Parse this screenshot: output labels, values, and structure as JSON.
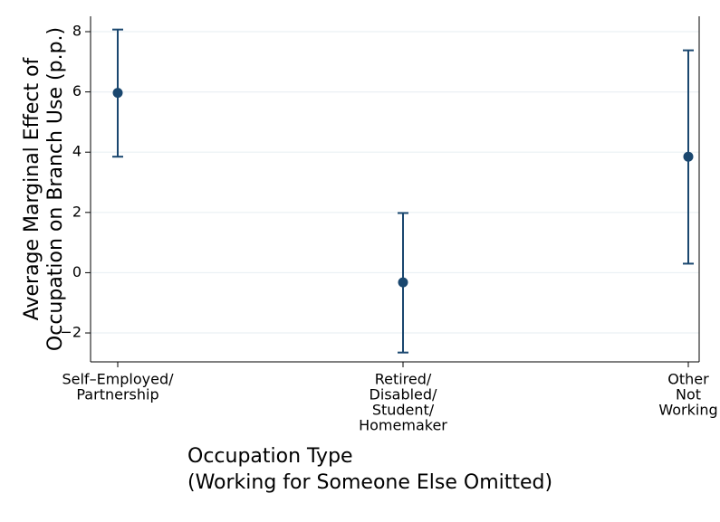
{
  "chart_data": {
    "type": "errorbar",
    "title_y": [
      "Average Marginal Effect of",
      "Occupation on Branch Use (p.p.)"
    ],
    "title_x": [
      "Occupation Type",
      "(Working for Someone Else Omitted)"
    ],
    "categories": [
      [
        "Self–Employed/",
        "Partnership"
      ],
      [
        "Retired/",
        "Disabled/",
        "Student/",
        "Homemaker"
      ],
      [
        "Other",
        "Not",
        "Working"
      ]
    ],
    "values": [
      5.97,
      -0.32,
      3.85
    ],
    "lower": [
      3.85,
      -2.65,
      0.3
    ],
    "upper": [
      8.07,
      1.98,
      7.38
    ],
    "color": "#1a476f",
    "ylim": [
      -2.96,
      8.51
    ],
    "yticks": [
      {
        "value": -2,
        "label": "−2"
      },
      0,
      2,
      4,
      6,
      8
    ],
    "grid": true
  }
}
